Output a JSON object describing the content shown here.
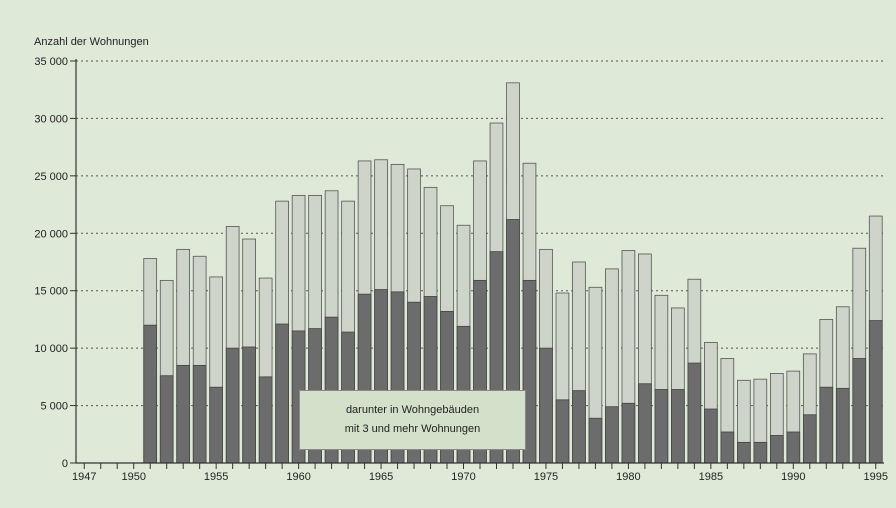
{
  "chart_data": {
    "type": "bar",
    "ylabel": "Anzahl der Wohnungen",
    "ylim": [
      0,
      35000
    ],
    "y_ticks": [
      "0",
      "5 000",
      "10 000",
      "15 000",
      "20 000",
      "25 000",
      "30 000",
      "35 000"
    ],
    "y_tick_values": [
      0,
      5000,
      10000,
      15000,
      20000,
      25000,
      30000,
      35000
    ],
    "x_tick_labels": [
      "1947",
      "1950",
      "1955",
      "1960",
      "1965",
      "1970",
      "1975",
      "1980",
      "1985",
      "1990",
      "1995"
    ],
    "x_tick_years": [
      1947,
      1950,
      1955,
      1960,
      1965,
      1970,
      1975,
      1980,
      1985,
      1990,
      1995
    ],
    "x_range": [
      1946.5,
      1995.5
    ],
    "grid": "horizontal dotted",
    "colors": {
      "total": "#cfd4ca",
      "subset": "#6c6c6c",
      "background": "#dfe9d8"
    },
    "legend": {
      "line1": "darunter in Wohngebäuden",
      "line2": "mit 3 und mehr Wohnungen"
    },
    "years": [
      1951,
      1952,
      1953,
      1954,
      1955,
      1956,
      1957,
      1958,
      1959,
      1960,
      1961,
      1962,
      1963,
      1964,
      1965,
      1966,
      1967,
      1968,
      1969,
      1970,
      1971,
      1972,
      1973,
      1974,
      1975,
      1976,
      1977,
      1978,
      1979,
      1980,
      1981,
      1982,
      1983,
      1984,
      1985,
      1986,
      1987,
      1988,
      1989,
      1990,
      1991,
      1992,
      1993,
      1994,
      1995
    ],
    "series": [
      {
        "name": "",
        "values": [
          17800,
          15900,
          18600,
          18000,
          16200,
          20600,
          19500,
          16100,
          22800,
          23300,
          23300,
          23700,
          22800,
          26300,
          26400,
          26000,
          25600,
          24000,
          22400,
          20700,
          26300,
          29600,
          33100,
          26100,
          18600,
          14800,
          17500,
          15300,
          16900,
          18500,
          18200,
          14600,
          13500,
          16000,
          10500,
          9100,
          7200,
          7300,
          7800,
          8000,
          9500,
          12500,
          13600,
          18700,
          21500
        ]
      },
      {
        "name": "darunter in Wohngebäuden mit 3 und mehr Wohnungen",
        "values": [
          12000,
          7600,
          8500,
          8500,
          6600,
          10000,
          10100,
          7500,
          12100,
          11500,
          11700,
          12700,
          11400,
          14700,
          15100,
          14900,
          14000,
          14500,
          13200,
          11900,
          15900,
          18400,
          21200,
          15900,
          10000,
          5500,
          6300,
          3900,
          4900,
          5200,
          6900,
          6400,
          6400,
          8700,
          4700,
          2700,
          1800,
          1800,
          2400,
          2700,
          4200,
          6600,
          6500,
          9100,
          12400
        ]
      }
    ]
  }
}
